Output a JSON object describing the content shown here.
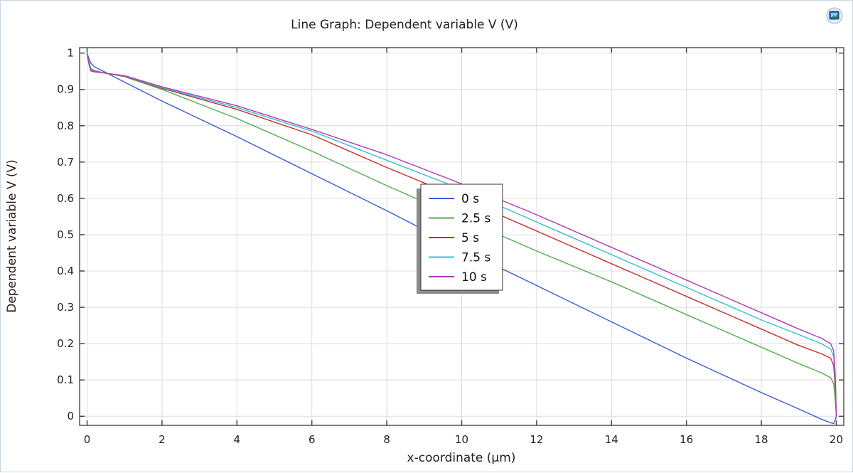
{
  "chart_data": {
    "type": "line",
    "title": "Line Graph: Dependent variable V (V)",
    "xlabel": "x-coordinate (µm)",
    "ylabel": "Dependent variable V (V)",
    "xlim": [
      -0.2,
      20.2
    ],
    "ylim": [
      -0.025,
      1.015
    ],
    "xticks": [
      0,
      2,
      4,
      6,
      8,
      10,
      12,
      14,
      16,
      18,
      20
    ],
    "yticks": [
      0,
      0.1,
      0.2,
      0.3,
      0.4,
      0.5,
      0.6,
      0.7,
      0.8,
      0.9,
      1
    ],
    "ytick_labels": [
      "0",
      "0.1",
      "0.2",
      "0.3",
      "0.4",
      "0.5",
      "0.6",
      "0.7",
      "0.8",
      "0.9",
      "1"
    ],
    "grid": true,
    "legend_position": "center",
    "series": [
      {
        "name": "0 s",
        "color": "#3b5bd6",
        "x": [
          0,
          0.05,
          0.1,
          0.2,
          0.4,
          1,
          2,
          4,
          6,
          8,
          10,
          12,
          14,
          16,
          18,
          19,
          19.6,
          19.85,
          19.93,
          19.97,
          20
        ],
        "y": [
          1,
          0.985,
          0.972,
          0.962,
          0.952,
          0.92,
          0.868,
          0.77,
          0.668,
          0.566,
          0.46,
          0.36,
          0.26,
          0.16,
          0.065,
          0.02,
          -0.008,
          -0.018,
          -0.02,
          -0.01,
          0
        ]
      },
      {
        "name": "2.5 s",
        "color": "#4fae4f",
        "x": [
          0,
          0.05,
          0.1,
          0.2,
          0.4,
          1,
          2,
          4,
          6,
          8,
          10,
          12,
          14,
          16,
          18,
          19,
          19.6,
          19.85,
          19.93,
          19.97,
          20
        ],
        "y": [
          1,
          0.975,
          0.958,
          0.952,
          0.947,
          0.935,
          0.9,
          0.82,
          0.73,
          0.635,
          0.545,
          0.455,
          0.37,
          0.28,
          0.19,
          0.145,
          0.12,
          0.106,
          0.09,
          0.05,
          0
        ]
      },
      {
        "name": "5 s",
        "color": "#c8302b",
        "x": [
          0,
          0.05,
          0.1,
          0.2,
          0.4,
          1,
          2,
          4,
          6,
          8,
          10,
          12,
          14,
          16,
          18,
          19,
          19.6,
          19.85,
          19.93,
          19.97,
          20
        ],
        "y": [
          1,
          0.972,
          0.954,
          0.95,
          0.946,
          0.936,
          0.903,
          0.845,
          0.775,
          0.685,
          0.6,
          0.51,
          0.42,
          0.33,
          0.24,
          0.195,
          0.172,
          0.16,
          0.14,
          0.08,
          0
        ]
      },
      {
        "name": "7.5 s",
        "color": "#35bfd0",
        "x": [
          0,
          0.05,
          0.1,
          0.2,
          0.4,
          1,
          2,
          4,
          6,
          8,
          10,
          12,
          14,
          16,
          18,
          19,
          19.6,
          19.85,
          19.93,
          19.97,
          20
        ],
        "y": [
          1,
          0.97,
          0.952,
          0.949,
          0.946,
          0.937,
          0.905,
          0.85,
          0.785,
          0.705,
          0.625,
          0.535,
          0.445,
          0.355,
          0.265,
          0.225,
          0.2,
          0.185,
          0.165,
          0.1,
          0
        ]
      },
      {
        "name": "10 s",
        "color": "#b23ab8",
        "x": [
          0,
          0.05,
          0.1,
          0.2,
          0.4,
          1,
          2,
          4,
          6,
          8,
          10,
          12,
          14,
          16,
          18,
          19,
          19.6,
          19.85,
          19.93,
          19.97,
          20
        ],
        "y": [
          1,
          0.968,
          0.951,
          0.948,
          0.946,
          0.938,
          0.907,
          0.855,
          0.79,
          0.72,
          0.64,
          0.555,
          0.465,
          0.375,
          0.285,
          0.24,
          0.215,
          0.2,
          0.18,
          0.12,
          0
        ]
      }
    ]
  }
}
